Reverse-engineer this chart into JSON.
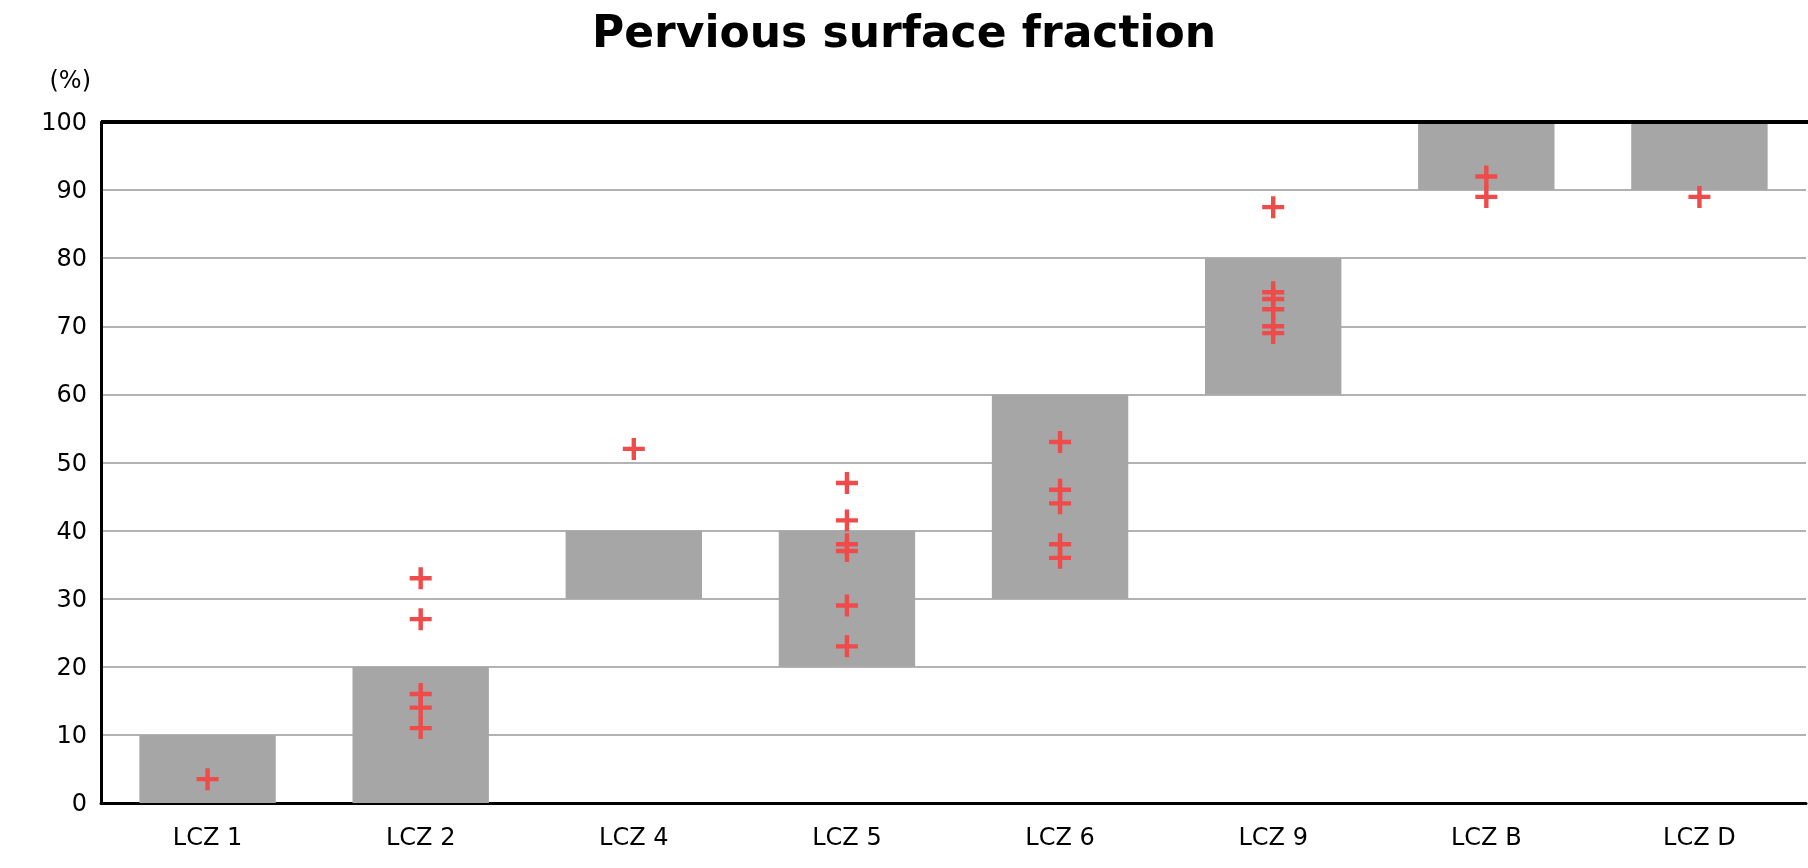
{
  "chart_data": {
    "type": "bar",
    "title": "Pervious surface fraction",
    "ylabel": "(%)",
    "categories": [
      "LCZ 1",
      "LCZ 2",
      "LCZ 4",
      "LCZ 5",
      "LCZ 6",
      "LCZ 9",
      "LCZ B",
      "LCZ D"
    ],
    "ylim": [
      0,
      100
    ],
    "yticks": [
      0,
      10,
      20,
      30,
      40,
      50,
      60,
      70,
      80,
      90,
      100
    ],
    "grid": "y",
    "series": [
      {
        "type": "bar",
        "color": "#a6a6a6",
        "base": [
          0,
          0,
          30,
          20,
          30,
          60,
          90,
          90
        ],
        "values": [
          10,
          20,
          10,
          20,
          30,
          20,
          10,
          10
        ]
      },
      {
        "type": "scatter",
        "color": "#ef4b4b",
        "marker": "cross",
        "x": [
          "LCZ 1",
          "LCZ 2",
          "LCZ 2",
          "LCZ 2",
          "LCZ 2",
          "LCZ 2",
          "LCZ 4",
          "LCZ 5",
          "LCZ 5",
          "LCZ 5",
          "LCZ 5",
          "LCZ 5",
          "LCZ 5",
          "LCZ 5",
          "LCZ 6",
          "LCZ 6",
          "LCZ 6",
          "LCZ 6",
          "LCZ 6",
          "LCZ 9",
          "LCZ 9",
          "LCZ 9",
          "LCZ 9",
          "LCZ 9",
          "LCZ 9",
          "LCZ B",
          "LCZ B",
          "LCZ D"
        ],
        "values": [
          3.5,
          33,
          27,
          16,
          14,
          11,
          52,
          null,
          47,
          41.5,
          38,
          37,
          29,
          23,
          53,
          46,
          44,
          38,
          36,
          87.5,
          75,
          74,
          72.5,
          70,
          69,
          92,
          89,
          89
        ]
      }
    ]
  }
}
